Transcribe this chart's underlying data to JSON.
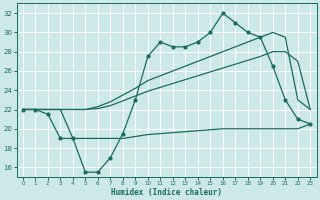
{
  "xlabel": "Humidex (Indice chaleur)",
  "xlim": [
    -0.5,
    23.5
  ],
  "ylim": [
    15,
    33
  ],
  "yticks": [
    16,
    18,
    20,
    22,
    24,
    26,
    28,
    30,
    32
  ],
  "xticks": [
    0,
    1,
    2,
    3,
    4,
    5,
    6,
    7,
    8,
    9,
    10,
    11,
    12,
    13,
    14,
    15,
    16,
    17,
    18,
    19,
    20,
    21,
    22,
    23
  ],
  "bg_color": "#cce8e8",
  "line_color": "#1a6b60",
  "grid_color": "#b8d8d8",
  "line1_x": [
    0,
    1,
    2,
    3,
    4,
    5,
    6,
    7,
    8,
    9,
    10,
    11,
    12,
    13,
    14,
    15,
    16,
    17,
    18,
    19,
    20,
    21,
    22,
    23
  ],
  "line1_y": [
    22,
    22,
    21.5,
    19,
    19,
    15.5,
    15.5,
    17,
    19.5,
    23,
    27.5,
    29,
    28.5,
    28.5,
    29,
    30,
    32,
    31,
    30,
    29.5,
    26.5,
    23,
    21,
    20.5
  ],
  "line2_x": [
    0,
    1,
    2,
    3,
    4,
    5,
    6,
    7,
    8,
    9,
    10,
    11,
    12,
    13,
    14,
    15,
    16,
    17,
    18,
    19,
    20,
    21,
    22,
    23
  ],
  "line2_y": [
    22,
    22,
    22,
    22,
    22,
    22,
    22.3,
    22.8,
    23.5,
    24.2,
    25,
    25.5,
    26,
    26.5,
    27,
    27.5,
    28,
    28.5,
    29,
    29.5,
    30,
    29.5,
    23,
    22
  ],
  "line3_x": [
    0,
    1,
    2,
    3,
    4,
    5,
    6,
    7,
    8,
    9,
    10,
    11,
    12,
    13,
    14,
    15,
    16,
    17,
    18,
    19,
    20,
    21,
    22,
    23
  ],
  "line3_y": [
    22,
    22,
    22,
    22,
    22,
    22,
    22.1,
    22.4,
    22.9,
    23.4,
    23.9,
    24.3,
    24.7,
    25.1,
    25.5,
    25.9,
    26.3,
    26.7,
    27.1,
    27.5,
    28,
    28,
    27,
    22
  ],
  "line4_x": [
    0,
    1,
    2,
    3,
    4,
    5,
    6,
    7,
    8,
    9,
    10,
    11,
    12,
    13,
    14,
    15,
    16,
    17,
    18,
    19,
    20,
    21,
    22,
    23
  ],
  "line4_y": [
    22,
    22,
    22,
    22,
    19,
    19,
    19,
    19,
    19,
    19.2,
    19.4,
    19.5,
    19.6,
    19.7,
    19.8,
    19.9,
    20,
    20,
    20,
    20,
    20,
    20,
    20,
    20.5
  ]
}
